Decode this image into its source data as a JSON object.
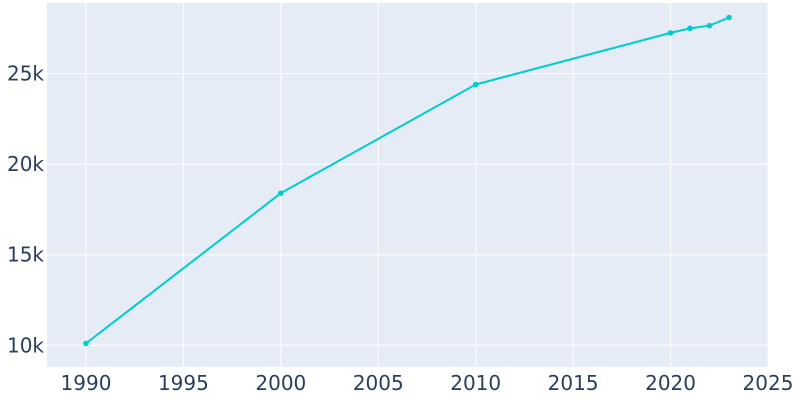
{
  "chart_data": {
    "type": "line",
    "title": "",
    "xlabel": "",
    "ylabel": "",
    "x": [
      1990,
      2000,
      2010,
      2020,
      2021,
      2022,
      2023
    ],
    "series": [
      {
        "values": [
          10100,
          18400,
          24400,
          27250,
          27500,
          27650,
          28100
        ]
      }
    ],
    "xlim": [
      1988,
      2025
    ],
    "ylim": [
      8800,
      28900
    ],
    "xticks": [
      1990,
      1995,
      2000,
      2005,
      2010,
      2015,
      2020,
      2025
    ],
    "xtick_labels": [
      "1990",
      "1995",
      "2000",
      "2005",
      "2010",
      "2015",
      "2020",
      "2025"
    ],
    "yticks": [
      10000,
      15000,
      20000,
      25000
    ],
    "ytick_labels": [
      "10k",
      "15k",
      "20k",
      "25k"
    ],
    "grid": true,
    "legend": "none"
  },
  "colors": {
    "plot_background": "#e5ecf6",
    "gridline": "#ffffff",
    "line": "#00cccc",
    "tick_text": "#2a3f5f"
  }
}
